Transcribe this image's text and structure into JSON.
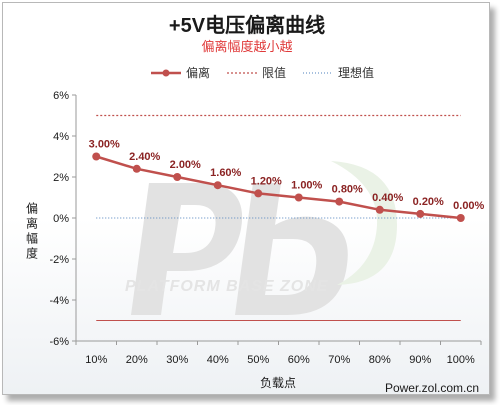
{
  "chart_data": {
    "type": "line",
    "title": "+5V电压偏离曲线",
    "subtitle": "偏离幅度越小越",
    "xlabel": "负载点",
    "ylabel": "偏离幅度",
    "categories": [
      "10%",
      "20%",
      "30%",
      "40%",
      "50%",
      "60%",
      "70%",
      "80%",
      "90%",
      "100%"
    ],
    "ylim": [
      -6,
      6
    ],
    "yticks": [
      -6,
      -4,
      -2,
      0,
      2,
      4,
      6
    ],
    "ytick_labels": [
      "-6%",
      "-4%",
      "-2%",
      "0%",
      "2%",
      "4%",
      "6%"
    ],
    "series": [
      {
        "name": "偏离",
        "values": [
          3.0,
          2.4,
          2.0,
          1.6,
          1.2,
          1.0,
          0.8,
          0.4,
          0.2,
          0.0
        ],
        "labels": [
          "3.00%",
          "2.40%",
          "2.00%",
          "1.60%",
          "1.20%",
          "1.00%",
          "0.80%",
          "0.40%",
          "0.20%",
          "0.00%"
        ],
        "color": "#c0504d"
      },
      {
        "name": "限值",
        "line_values": [
          5,
          -5
        ],
        "color": "#c0504d"
      },
      {
        "name": "理想值",
        "line_values": [
          0
        ],
        "color": "#4f81bd"
      }
    ],
    "legend_position": "top",
    "grid": false
  },
  "watermark": {
    "text": "PLATFORM BASE ZONE"
  },
  "site_credit": "Power.zol.com.cn"
}
